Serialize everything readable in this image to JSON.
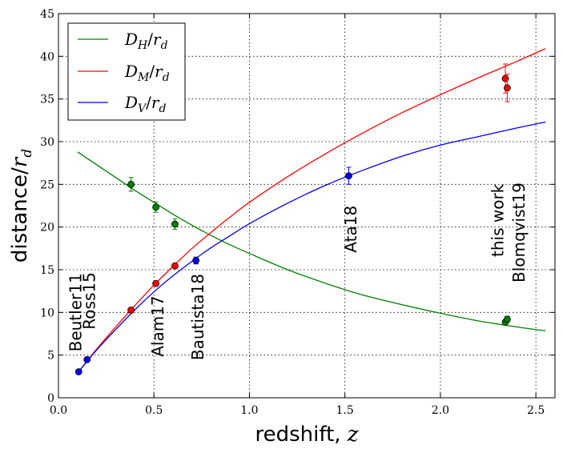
{
  "chart_data": {
    "type": "scatter",
    "xlabel_text": "redshift, ",
    "xlabel_var": "z",
    "ylabel_text": "distance/",
    "ylabel_var": "r",
    "ylabel_sub": "d",
    "xlim": [
      0.0,
      2.6
    ],
    "ylim": [
      0,
      45
    ],
    "xticks": [
      0.0,
      0.5,
      1.0,
      1.5,
      2.0,
      2.5
    ],
    "xtick_labels": [
      "0.0",
      "0.5",
      "1.0",
      "1.5",
      "2.0",
      "2.5"
    ],
    "yticks": [
      0,
      5,
      10,
      15,
      20,
      25,
      30,
      35,
      40,
      45
    ],
    "ytick_labels": [
      "0",
      "5",
      "10",
      "15",
      "20",
      "25",
      "30",
      "35",
      "40",
      "45"
    ],
    "grid": true,
    "legend_position": "top-left",
    "legend": [
      {
        "base": "D",
        "sub1": "H",
        "sep": "/",
        "base2": "r",
        "sub2": "d",
        "color": "#008000"
      },
      {
        "base": "D",
        "sub1": "M",
        "sep": "/",
        "base2": "r",
        "sub2": "d",
        "color": "#ff0000"
      },
      {
        "base": "D",
        "sub1": "V",
        "sep": "/",
        "base2": "r",
        "sub2": "d",
        "color": "#0000ff"
      }
    ],
    "curves": [
      {
        "name": "D_H/r_d",
        "color": "#008000",
        "x": [
          0.1,
          0.2,
          0.3,
          0.4,
          0.5,
          0.6,
          0.7,
          0.8,
          0.9,
          1.0,
          1.2,
          1.4,
          1.6,
          1.8,
          2.0,
          2.2,
          2.4,
          2.55
        ],
        "y": [
          28.8,
          27.3,
          25.8,
          24.3,
          22.9,
          21.5,
          20.2,
          19.0,
          17.9,
          16.9,
          15.0,
          13.4,
          12.0,
          10.9,
          9.9,
          9.0,
          8.3,
          7.85
        ]
      },
      {
        "name": "D_M/r_d",
        "color": "#ff0000",
        "x": [
          0.1,
          0.2,
          0.3,
          0.4,
          0.5,
          0.6,
          0.7,
          0.8,
          0.9,
          1.0,
          1.2,
          1.4,
          1.6,
          1.8,
          2.0,
          2.2,
          2.4,
          2.55
        ],
        "y": [
          2.9,
          5.7,
          8.3,
          10.8,
          13.2,
          15.4,
          17.5,
          19.4,
          21.2,
          22.9,
          25.9,
          28.6,
          31.1,
          33.4,
          35.5,
          37.5,
          39.4,
          40.9
        ]
      },
      {
        "name": "D_V/r_d",
        "color": "#0000ff",
        "x": [
          0.1,
          0.2,
          0.3,
          0.4,
          0.5,
          0.6,
          0.7,
          0.8,
          0.9,
          1.0,
          1.2,
          1.4,
          1.6,
          1.8,
          2.0,
          2.2,
          2.4,
          2.55
        ],
        "y": [
          2.9,
          5.6,
          8.0,
          10.3,
          12.4,
          14.3,
          16.0,
          17.6,
          19.0,
          20.4,
          22.8,
          24.9,
          26.7,
          28.3,
          29.6,
          30.6,
          31.6,
          32.3
        ]
      }
    ],
    "points": [
      {
        "x": 0.106,
        "y": 3.05,
        "err": 0.15,
        "color": "#0000ff",
        "series": "D_V/r_d"
      },
      {
        "x": 0.15,
        "y": 4.47,
        "err": 0.17,
        "color": "#0000ff",
        "series": "D_V/r_d"
      },
      {
        "x": 0.38,
        "y": 10.27,
        "err": 0.15,
        "color": "#ff0000",
        "series": "D_M/r_d"
      },
      {
        "x": 0.51,
        "y": 13.38,
        "err": 0.18,
        "color": "#ff0000",
        "series": "D_M/r_d"
      },
      {
        "x": 0.61,
        "y": 15.45,
        "err": 0.22,
        "color": "#ff0000",
        "series": "D_M/r_d"
      },
      {
        "x": 0.38,
        "y": 25.0,
        "err": 0.8,
        "color": "#008000",
        "series": "D_H/r_d"
      },
      {
        "x": 0.51,
        "y": 22.33,
        "err": 0.6,
        "color": "#008000",
        "series": "D_H/r_d"
      },
      {
        "x": 0.61,
        "y": 20.34,
        "err": 0.6,
        "color": "#008000",
        "series": "D_H/r_d"
      },
      {
        "x": 0.72,
        "y": 16.08,
        "err": 0.4,
        "color": "#0000ff",
        "series": "D_V/r_d"
      },
      {
        "x": 1.52,
        "y": 26.0,
        "err": 1.0,
        "color": "#0000ff",
        "series": "D_V/r_d"
      },
      {
        "x": 2.34,
        "y": 8.86,
        "err": 0.29,
        "color": "#008000",
        "series": "D_H/r_d"
      },
      {
        "x": 2.35,
        "y": 9.2,
        "err": 0.36,
        "color": "#008000",
        "series": "D_H/r_d"
      },
      {
        "x": 2.34,
        "y": 37.4,
        "err": 1.7,
        "color": "#ff0000",
        "series": "D_M/r_d"
      },
      {
        "x": 2.35,
        "y": 36.3,
        "err": 1.6,
        "color": "#ff0000",
        "series": "D_M/r_d"
      }
    ],
    "annotations": [
      {
        "text": "Beutler11",
        "x": 0.12,
        "y": 5.4
      },
      {
        "text": "Ross15",
        "x": 0.19,
        "y": 8.0
      },
      {
        "text": "Alam17",
        "x": 0.55,
        "y": 4.8
      },
      {
        "text": "Bautista18",
        "x": 0.76,
        "y": 4.4
      },
      {
        "text": "Ata18",
        "x": 1.56,
        "y": 17.0
      },
      {
        "text": "this work",
        "x": 2.33,
        "y": 16.5
      },
      {
        "text": "Blomqvist19",
        "x": 2.44,
        "y": 13.5
      }
    ]
  }
}
